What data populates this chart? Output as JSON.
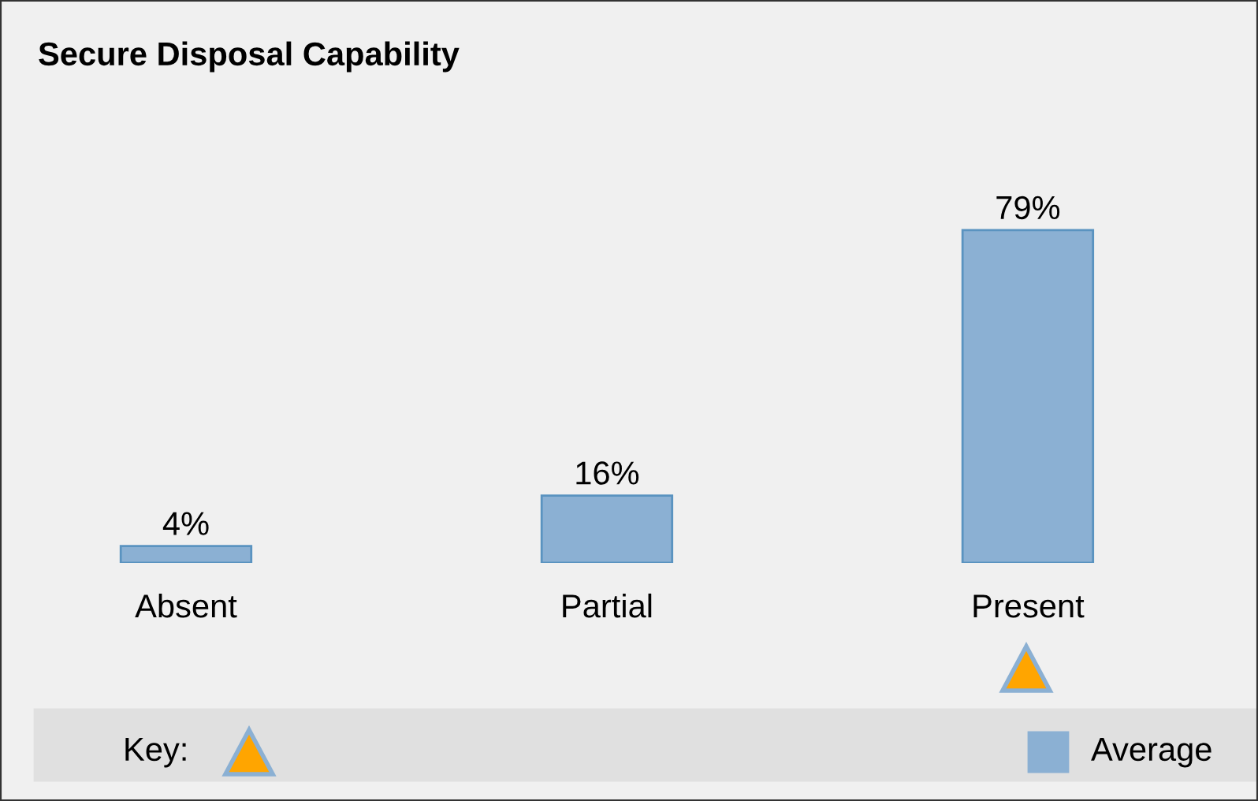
{
  "chart_data": {
    "type": "bar",
    "title": "Secure Disposal Capability",
    "categories": [
      "Absent",
      "Partial",
      "Present"
    ],
    "series": [
      {
        "name": "Average",
        "color": "#8bb0d3",
        "values": [
          4,
          16,
          79
        ],
        "value_labels": [
          "4%",
          "16%",
          "79%"
        ]
      }
    ],
    "legend": "bottom",
    "legend_title": "Key:",
    "grid": false
  }
}
